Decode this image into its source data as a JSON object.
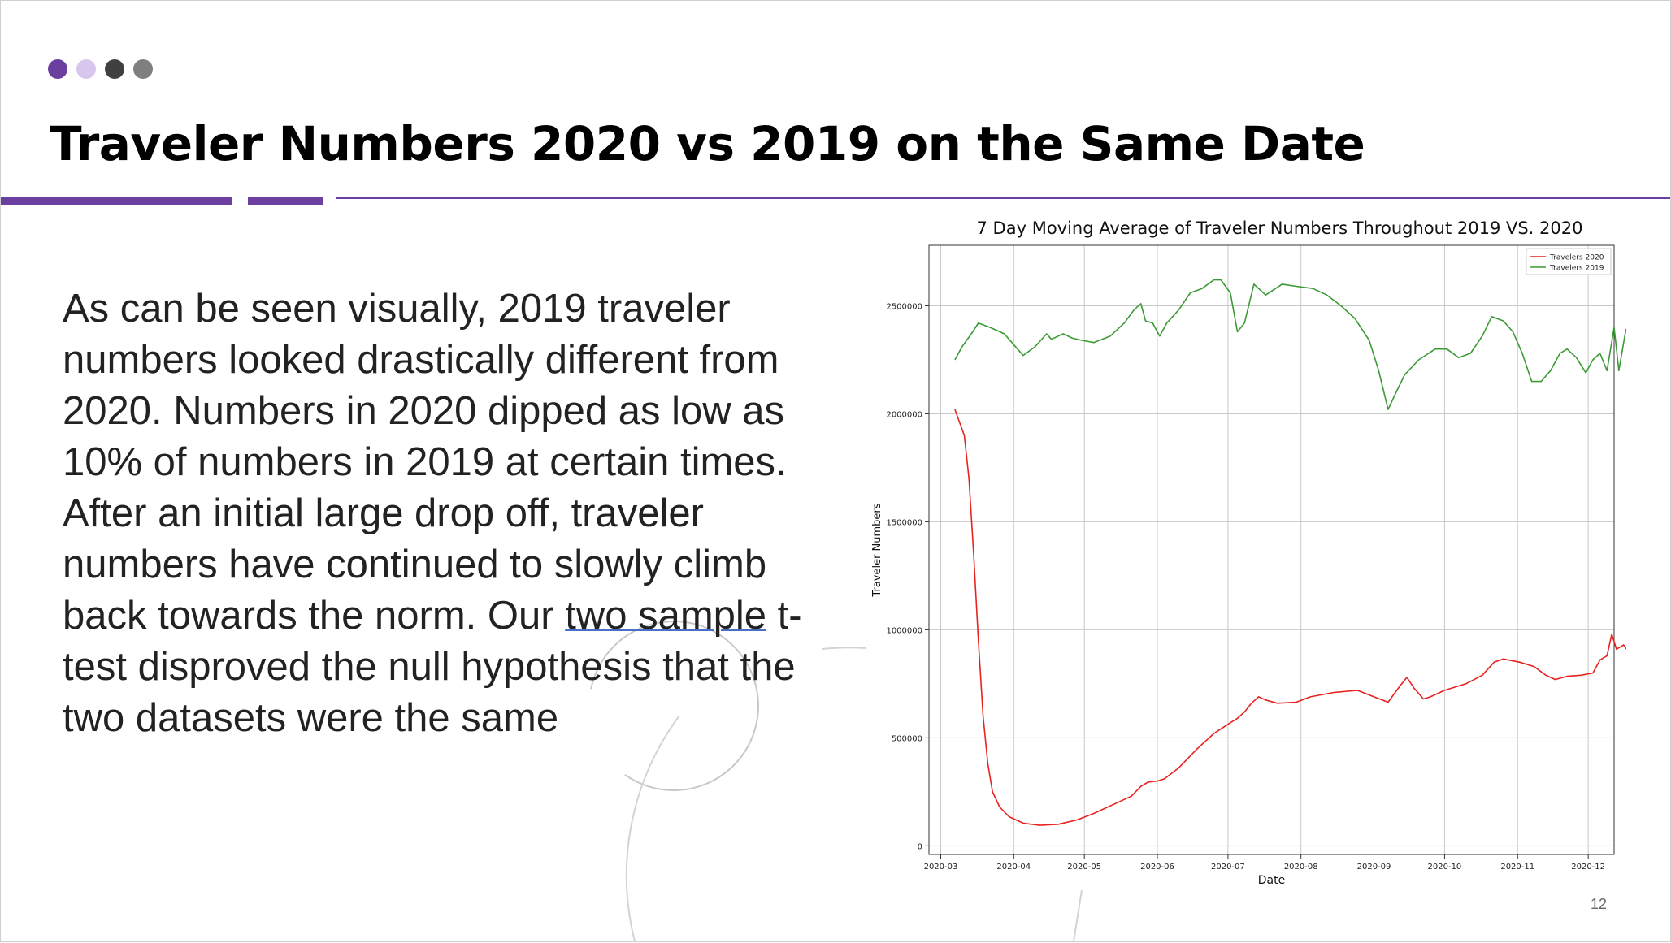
{
  "slide": {
    "title": "Traveler Numbers 2020 vs 2019 on the Same Date",
    "page_number": "12",
    "dots": [
      "#6b3fa0",
      "#d8c7ec",
      "#404040",
      "#7f7f7f"
    ],
    "accent_color": "#6b3fa0",
    "body": {
      "part1": "As can be seen visually, 2019 traveler numbers looked drastically different from 2020.  Numbers in 2020 dipped as low as 10% of numbers in 2019 at certain times.  After an initial large drop off, traveler numbers have continued to slowly climb back towards the norm.  Our ",
      "underlined": "two sample",
      "part2": " t-test disproved the null hypothesis that the two datasets were the same"
    }
  },
  "chart_data": {
    "type": "line",
    "title": "7 Day Moving Average of Traveler Numbers Throughout 2019 VS. 2020",
    "xlabel": "Date",
    "ylabel": "Traveler Numbers",
    "x_ticks": [
      "2020-03",
      "2020-04",
      "2020-05",
      "2020-06",
      "2020-07",
      "2020-08",
      "2020-09",
      "2020-10",
      "2020-11",
      "2020-12"
    ],
    "y_ticks": [
      0,
      500000,
      1000000,
      1500000,
      2000000,
      2500000
    ],
    "ylim": [
      -40000,
      2780000
    ],
    "xlim": [
      "2020-02-25",
      "2020-12-12"
    ],
    "grid": true,
    "legend_position": "top-right",
    "series": [
      {
        "name": "Travelers 2020",
        "color": "#e8221f",
        "points": [
          [
            "2020-03-07",
            2020000
          ],
          [
            "2020-03-09",
            1960000
          ],
          [
            "2020-03-11",
            1900000
          ],
          [
            "2020-03-13",
            1700000
          ],
          [
            "2020-03-15",
            1350000
          ],
          [
            "2020-03-17",
            950000
          ],
          [
            "2020-03-19",
            600000
          ],
          [
            "2020-03-21",
            380000
          ],
          [
            "2020-03-23",
            250000
          ],
          [
            "2020-03-26",
            180000
          ],
          [
            "2020-03-30",
            135000
          ],
          [
            "2020-04-05",
            105000
          ],
          [
            "2020-04-12",
            95000
          ],
          [
            "2020-04-20",
            100000
          ],
          [
            "2020-04-28",
            120000
          ],
          [
            "2020-05-05",
            150000
          ],
          [
            "2020-05-15",
            200000
          ],
          [
            "2020-05-21",
            230000
          ],
          [
            "2020-05-25",
            275000
          ],
          [
            "2020-05-28",
            295000
          ],
          [
            "2020-06-01",
            300000
          ],
          [
            "2020-06-04",
            310000
          ],
          [
            "2020-06-10",
            360000
          ],
          [
            "2020-06-18",
            450000
          ],
          [
            "2020-06-25",
            520000
          ],
          [
            "2020-07-02",
            570000
          ],
          [
            "2020-07-05",
            590000
          ],
          [
            "2020-07-08",
            620000
          ],
          [
            "2020-07-11",
            660000
          ],
          [
            "2020-07-14",
            690000
          ],
          [
            "2020-07-17",
            675000
          ],
          [
            "2020-07-22",
            660000
          ],
          [
            "2020-07-30",
            665000
          ],
          [
            "2020-08-05",
            690000
          ],
          [
            "2020-08-15",
            710000
          ],
          [
            "2020-08-25",
            720000
          ],
          [
            "2020-09-01",
            690000
          ],
          [
            "2020-09-07",
            665000
          ],
          [
            "2020-09-12",
            740000
          ],
          [
            "2020-09-15",
            780000
          ],
          [
            "2020-09-18",
            730000
          ],
          [
            "2020-09-22",
            680000
          ],
          [
            "2020-09-25",
            690000
          ],
          [
            "2020-10-01",
            720000
          ],
          [
            "2020-10-10",
            750000
          ],
          [
            "2020-10-17",
            790000
          ],
          [
            "2020-10-22",
            850000
          ],
          [
            "2020-10-26",
            865000
          ],
          [
            "2020-11-02",
            850000
          ],
          [
            "2020-11-08",
            830000
          ],
          [
            "2020-11-13",
            790000
          ],
          [
            "2020-11-17",
            770000
          ],
          [
            "2020-11-22",
            785000
          ],
          [
            "2020-11-28",
            790000
          ],
          [
            "2020-12-03",
            800000
          ],
          [
            "2020-12-06",
            860000
          ],
          [
            "2020-12-09",
            880000
          ],
          [
            "2020-12-11",
            980000
          ],
          [
            "2020-12-13",
            910000
          ],
          [
            "2020-12-16",
            930000
          ],
          [
            "2020-12-18",
            900000
          ]
        ]
      },
      {
        "name": "Travelers 2019",
        "color": "#3c9a35",
        "points": [
          [
            "2020-03-07",
            2250000
          ],
          [
            "2020-03-10",
            2310000
          ],
          [
            "2020-03-14",
            2370000
          ],
          [
            "2020-03-17",
            2420000
          ],
          [
            "2020-03-22",
            2400000
          ],
          [
            "2020-03-28",
            2370000
          ],
          [
            "2020-04-01",
            2320000
          ],
          [
            "2020-04-05",
            2270000
          ],
          [
            "2020-04-10",
            2310000
          ],
          [
            "2020-04-15",
            2370000
          ],
          [
            "2020-04-17",
            2345000
          ],
          [
            "2020-04-22",
            2370000
          ],
          [
            "2020-04-26",
            2350000
          ],
          [
            "2020-04-30",
            2340000
          ],
          [
            "2020-05-05",
            2330000
          ],
          [
            "2020-05-12",
            2360000
          ],
          [
            "2020-05-18",
            2420000
          ],
          [
            "2020-05-22",
            2480000
          ],
          [
            "2020-05-25",
            2510000
          ],
          [
            "2020-05-27",
            2430000
          ],
          [
            "2020-05-30",
            2420000
          ],
          [
            "2020-06-02",
            2360000
          ],
          [
            "2020-06-05",
            2420000
          ],
          [
            "2020-06-10",
            2480000
          ],
          [
            "2020-06-15",
            2560000
          ],
          [
            "2020-06-20",
            2580000
          ],
          [
            "2020-06-25",
            2620000
          ],
          [
            "2020-06-28",
            2620000
          ],
          [
            "2020-07-02",
            2560000
          ],
          [
            "2020-07-05",
            2380000
          ],
          [
            "2020-07-08",
            2420000
          ],
          [
            "2020-07-12",
            2600000
          ],
          [
            "2020-07-17",
            2550000
          ],
          [
            "2020-07-24",
            2600000
          ],
          [
            "2020-07-30",
            2590000
          ],
          [
            "2020-08-06",
            2580000
          ],
          [
            "2020-08-12",
            2550000
          ],
          [
            "2020-08-18",
            2500000
          ],
          [
            "2020-08-24",
            2440000
          ],
          [
            "2020-08-30",
            2340000
          ],
          [
            "2020-09-03",
            2200000
          ],
          [
            "2020-09-07",
            2020000
          ],
          [
            "2020-09-10",
            2090000
          ],
          [
            "2020-09-14",
            2180000
          ],
          [
            "2020-09-20",
            2250000
          ],
          [
            "2020-09-27",
            2300000
          ],
          [
            "2020-10-02",
            2300000
          ],
          [
            "2020-10-07",
            2260000
          ],
          [
            "2020-10-12",
            2280000
          ],
          [
            "2020-10-17",
            2360000
          ],
          [
            "2020-10-21",
            2450000
          ],
          [
            "2020-10-26",
            2430000
          ],
          [
            "2020-10-30",
            2380000
          ],
          [
            "2020-11-03",
            2280000
          ],
          [
            "2020-11-07",
            2150000
          ],
          [
            "2020-11-11",
            2150000
          ],
          [
            "2020-11-15",
            2200000
          ],
          [
            "2020-11-19",
            2280000
          ],
          [
            "2020-11-22",
            2300000
          ],
          [
            "2020-11-26",
            2260000
          ],
          [
            "2020-11-30",
            2190000
          ],
          [
            "2020-12-03",
            2250000
          ],
          [
            "2020-12-06",
            2280000
          ],
          [
            "2020-12-09",
            2200000
          ],
          [
            "2020-12-12",
            2400000
          ],
          [
            "2020-12-14",
            2200000
          ],
          [
            "2020-12-17",
            2390000
          ],
          [
            "2020-12-18",
            2370000
          ]
        ]
      }
    ]
  }
}
